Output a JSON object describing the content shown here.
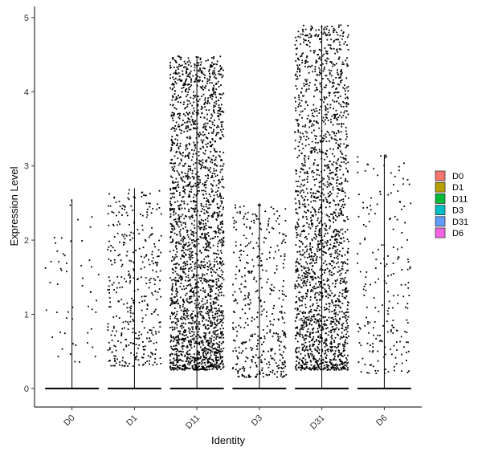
{
  "chart_data": {
    "type": "scatter",
    "subtype": "violin-jitter",
    "title": "",
    "xlabel": "Identity",
    "ylabel": "Expression Level",
    "ylim": [
      -0.25,
      5.15
    ],
    "yticks": [
      0,
      1,
      2,
      3,
      4,
      5
    ],
    "grid": false,
    "legend_position": "right",
    "categories": [
      "D0",
      "D1",
      "D11",
      "D3",
      "D31",
      "D6"
    ],
    "series": [
      {
        "name": "D0",
        "color": "#F8766D",
        "max": 2.55,
        "n_nonzero": 55,
        "low": 0.35,
        "high": 2.55
      },
      {
        "name": "D1",
        "color": "#B79F00",
        "max": 2.7,
        "n_nonzero": 380,
        "low": 0.3,
        "high": 2.7
      },
      {
        "name": "D11",
        "color": "#00BA38",
        "max": 4.48,
        "n_nonzero": 2300,
        "low": 0.25,
        "high": 4.48
      },
      {
        "name": "D3",
        "color": "#00BFC4",
        "max": 2.5,
        "n_nonzero": 420,
        "low": 0.15,
        "high": 2.5
      },
      {
        "name": "D31",
        "color": "#619CFF",
        "max": 4.9,
        "n_nonzero": 2000,
        "low": 0.25,
        "high": 4.9
      },
      {
        "name": "D6",
        "color": "#F564E3",
        "max": 3.15,
        "n_nonzero": 210,
        "low": 0.2,
        "high": 3.15
      }
    ]
  }
}
